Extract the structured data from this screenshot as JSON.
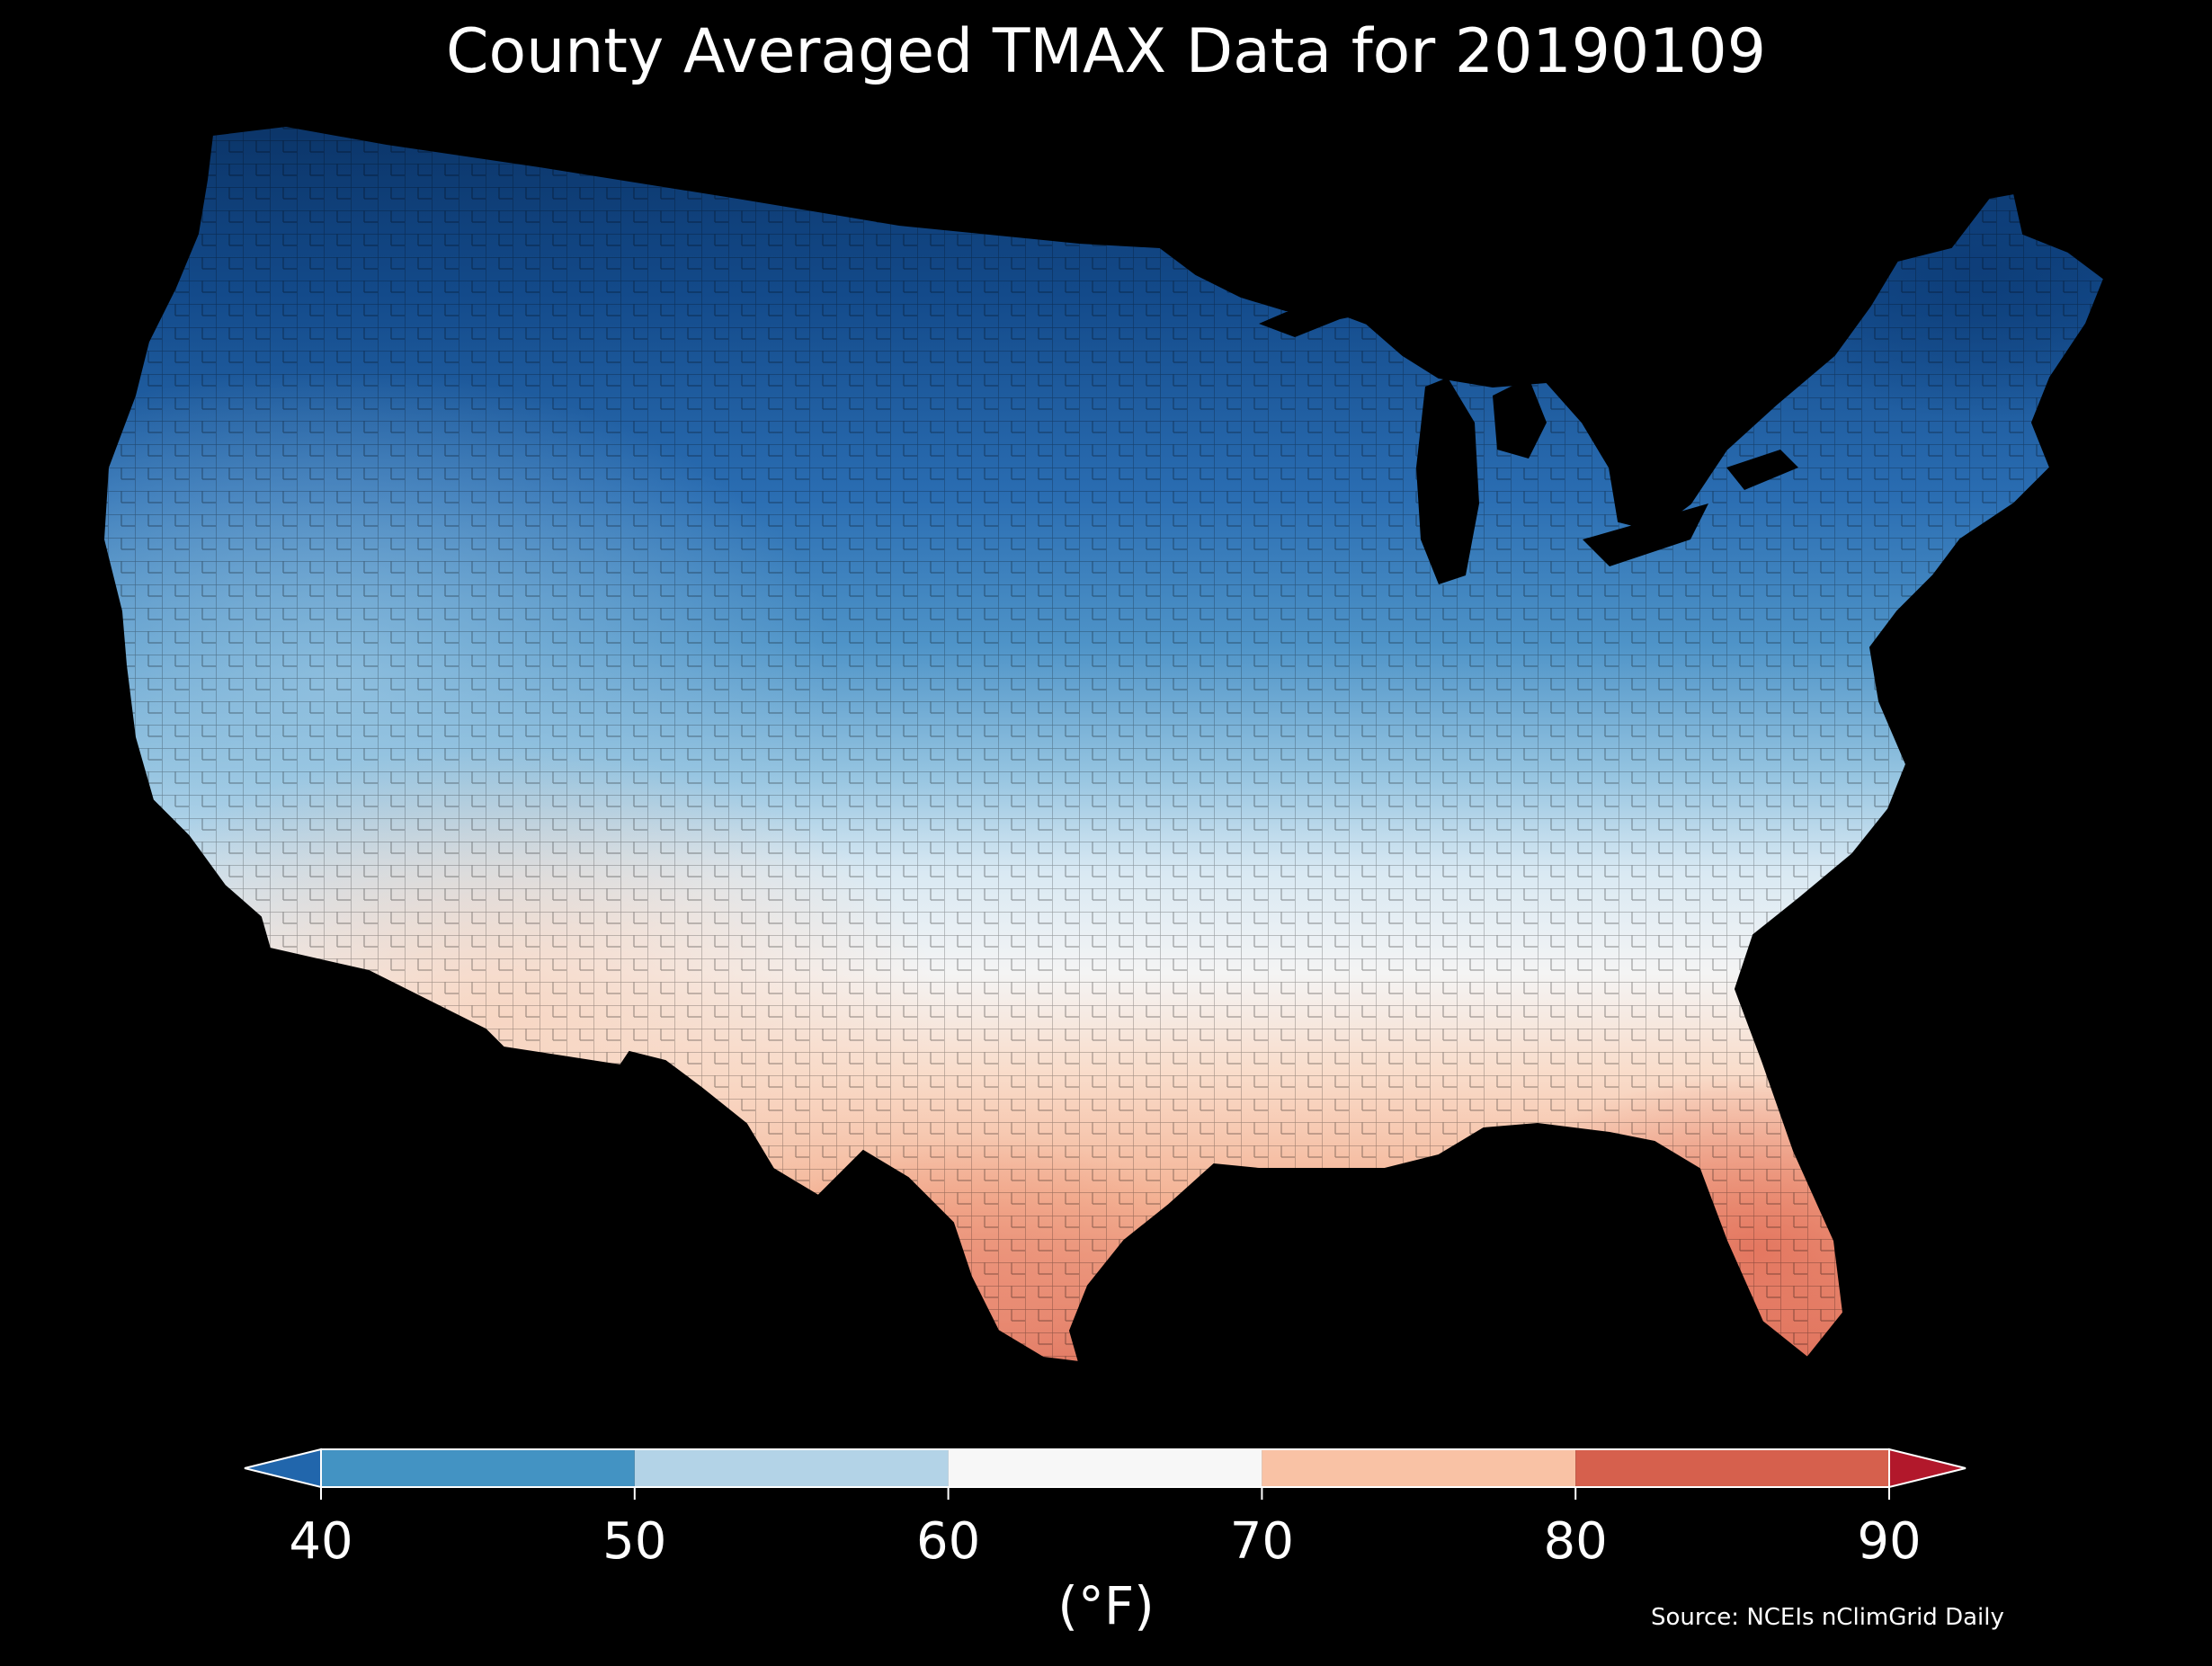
{
  "title": "County Averaged TMAX Data for 20190109",
  "source": "Source: NCEIs nClimGrid Daily",
  "colorbar": {
    "label": "(°F)",
    "ticks": [
      "40",
      "50",
      "60",
      "70",
      "80",
      "90"
    ],
    "min": 40,
    "max": 90,
    "extend": "both",
    "bins": [
      {
        "range": [
          40,
          50
        ],
        "color": "#4393c3"
      },
      {
        "range": [
          50,
          60
        ],
        "color": "#b3d3e7"
      },
      {
        "range": [
          60,
          70
        ],
        "color": "#f7f7f7"
      },
      {
        "range": [
          70,
          80
        ],
        "color": "#f9c2a5"
      },
      {
        "range": [
          80,
          90
        ],
        "color": "#d6604d"
      }
    ],
    "under_color": "#2166ac",
    "over_color": "#b2182b"
  },
  "colors": {
    "background": "#000000",
    "coldest": "#0b3467",
    "cold": "#2a6db2",
    "mid_cold": "#5fa4d0",
    "cool": "#b9d8ea",
    "neutral": "#f2f2f2",
    "warm": "#f7c3a7",
    "warmest": "#dd6e59"
  }
}
